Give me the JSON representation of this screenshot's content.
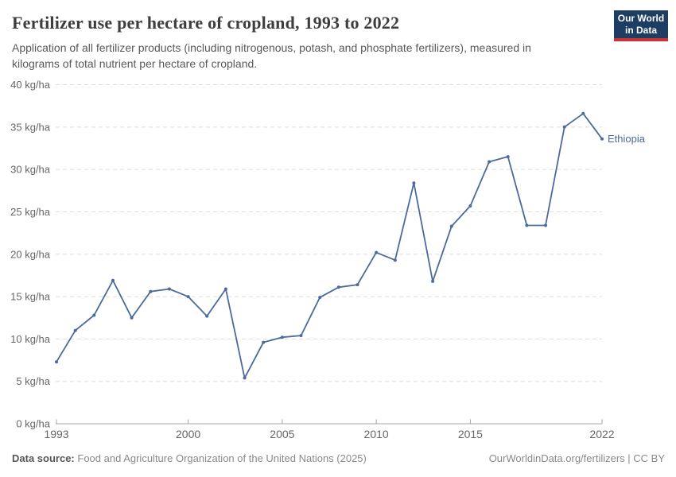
{
  "header": {
    "title": "Fertilizer use per hectare of cropland, 1993 to 2022",
    "subtitle": "Application of all fertilizer products (including nitrogenous, potash, and phosphate fertilizers), measured in kilograms of total nutrient per hectare of cropland.",
    "logo": {
      "line1": "Our World",
      "line2": "in Data"
    }
  },
  "footer": {
    "source_label": "Data source:",
    "source_text": "Food and Agriculture Organization of the United Nations (2025)",
    "credit": "OurWorldinData.org/fertilizers | CC BY"
  },
  "colors": {
    "line": "#4c6a9c",
    "entity_label": "#4c6a9c",
    "grid": "#dddddd",
    "axis": "#a6a6a6",
    "tick_text": "#666666",
    "logo_bg": "#1d3d63",
    "logo_bar": "#cb3335"
  },
  "chart_data": {
    "type": "line",
    "title": "Fertilizer use per hectare of cropland, 1993 to 2022",
    "entity": "Ethiopia",
    "unit": "kg/ha",
    "x": [
      1993,
      1994,
      1995,
      1996,
      1997,
      1998,
      1999,
      2000,
      2001,
      2002,
      2003,
      2004,
      2005,
      2006,
      2007,
      2008,
      2009,
      2010,
      2011,
      2012,
      2013,
      2014,
      2015,
      2016,
      2017,
      2018,
      2019,
      2020,
      2021,
      2022
    ],
    "series": [
      {
        "name": "Ethiopia",
        "values": [
          7.3,
          11.0,
          12.8,
          16.9,
          12.5,
          15.6,
          15.9,
          15.0,
          12.7,
          15.9,
          5.4,
          9.6,
          10.2,
          10.4,
          14.9,
          16.1,
          16.4,
          20.2,
          19.3,
          28.4,
          16.8,
          23.3,
          25.7,
          30.9,
          31.5,
          23.4,
          23.4,
          35.0,
          36.6,
          33.6
        ]
      }
    ],
    "xlim": [
      1993,
      2022
    ],
    "ylim": [
      0,
      40
    ],
    "ytick_values": [
      0,
      5,
      10,
      15,
      20,
      25,
      30,
      35,
      40
    ],
    "ytick_labels": [
      "0 kg/ha",
      "5 kg/ha",
      "10 kg/ha",
      "15 kg/ha",
      "20 kg/ha",
      "25 kg/ha",
      "30 kg/ha",
      "35 kg/ha",
      "40 kg/ha"
    ],
    "xtick_values": [
      1993,
      2000,
      2005,
      2010,
      2015,
      2022
    ],
    "xtick_labels": [
      "1993",
      "2000",
      "2005",
      "2010",
      "2015",
      "2022"
    ],
    "grid": "horizontal-dashed",
    "legend_position": "end-of-line-label"
  }
}
